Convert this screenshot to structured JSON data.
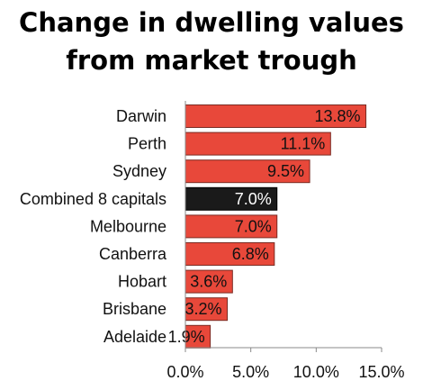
{
  "title_line1": "Change in dwelling values",
  "title_line2": "from market trough",
  "chart_data": {
    "type": "bar",
    "orientation": "horizontal",
    "title": "Change in dwelling values from market trough",
    "categories": [
      "Darwin",
      "Perth",
      "Sydney",
      "Combined 8 capitals",
      "Melbourne",
      "Canberra",
      "Hobart",
      "Brisbane",
      "Adelaide"
    ],
    "values": [
      13.8,
      11.1,
      9.5,
      7.0,
      7.0,
      6.8,
      3.6,
      3.2,
      1.9
    ],
    "data_labels": [
      "13.8%",
      "11.1%",
      "9.5%",
      "7.0%",
      "7.0%",
      "6.8%",
      "3.6%",
      "3.2%",
      "1.9%"
    ],
    "highlighted_category": "Combined 8 capitals",
    "xlim": [
      0,
      15
    ],
    "x_ticks": [
      0,
      5,
      10,
      15
    ],
    "x_tick_labels": [
      "0.0%",
      "5.0%",
      "10.0%",
      "15.0%"
    ],
    "xlabel": "",
    "ylabel": "",
    "grid": false,
    "legend": "none",
    "colors": {
      "bar": "#e8483a",
      "bar_highlight": "#1a1a1a",
      "bar_border": "#7a2a22",
      "label_text": "#111111",
      "label_text_highlight": "#ffffff",
      "axis": "#888888"
    }
  }
}
